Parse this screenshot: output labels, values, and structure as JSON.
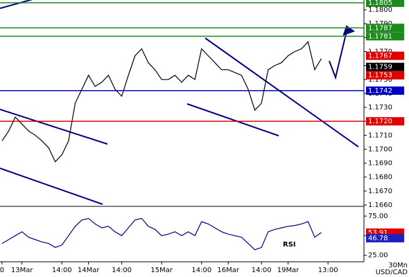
{
  "chart_data": [
    {
      "type": "line",
      "symbol": "USD/CAD",
      "timeframe": "30Mn",
      "color": "#000000",
      "x": [
        0,
        1,
        2,
        3,
        4,
        5,
        6,
        7,
        8,
        9,
        10,
        11,
        12,
        13,
        14,
        15,
        16,
        17,
        18,
        19,
        20,
        21,
        22,
        23,
        24,
        25,
        26,
        27,
        28,
        29,
        30,
        31,
        32,
        33,
        34,
        35,
        36,
        37,
        38,
        39,
        40,
        41,
        42,
        43,
        44,
        45,
        46,
        47,
        48
      ],
      "values": [
        1.1706,
        1.1713,
        1.1723,
        1.1718,
        1.1713,
        1.171,
        1.1706,
        1.1701,
        1.1691,
        1.1696,
        1.1706,
        1.1733,
        1.1743,
        1.1753,
        1.1745,
        1.1748,
        1.1753,
        1.1743,
        1.1738,
        1.1753,
        1.1767,
        1.1772,
        1.1762,
        1.1757,
        1.175,
        1.175,
        1.1753,
        1.1748,
        1.1753,
        1.175,
        1.1772,
        1.1767,
        1.1762,
        1.1757,
        1.1757,
        1.1755,
        1.1753,
        1.1743,
        1.1728,
        1.1733,
        1.1757,
        1.176,
        1.1762,
        1.1767,
        1.177,
        1.1772,
        1.1777,
        1.1757,
        1.1765
      ],
      "xlim": [
        -0.3,
        54.4
      ],
      "xticks": [
        {
          "value": 0,
          "label": "0"
        },
        {
          "value": 3,
          "label": "13Mar"
        },
        {
          "value": 9,
          "label": "14:00"
        },
        {
          "value": 13,
          "label": "14Mar"
        },
        {
          "value": 18,
          "label": "14:00"
        },
        {
          "value": 24,
          "label": "15Mar"
        },
        {
          "value": 30,
          "label": "14:00"
        },
        {
          "value": 34,
          "label": "16Mar"
        },
        {
          "value": 39,
          "label": "14:00"
        },
        {
          "value": 43,
          "label": "19Mar"
        },
        {
          "value": 49,
          "label": "13:00"
        }
      ],
      "ylim": [
        1.1659,
        1.1807
      ],
      "yticks": [
        {
          "value": 1.166,
          "label": "1.1660"
        },
        {
          "value": 1.167,
          "label": "1.1670"
        },
        {
          "value": 1.168,
          "label": "1.1680"
        },
        {
          "value": 1.169,
          "label": "1.1690"
        },
        {
          "value": 1.17,
          "label": "1.1700"
        },
        {
          "value": 1.171,
          "label": "1.1710"
        },
        {
          "value": 1.172,
          "label": "1.1720"
        },
        {
          "value": 1.173,
          "label": "1.1730"
        },
        {
          "value": 1.174,
          "label": "1.1740"
        },
        {
          "value": 1.175,
          "label": "1.1750"
        },
        {
          "value": 1.176,
          "label": "1.1760"
        },
        {
          "value": 1.177,
          "label": "1.1770"
        },
        {
          "value": 1.178,
          "label": "1.1780"
        },
        {
          "value": 1.179,
          "label": "1.1790"
        },
        {
          "value": 1.18,
          "label": "1.1800"
        }
      ],
      "levels": [
        {
          "value": 1.1805,
          "label": "1.1805",
          "color": "#1e8a1e",
          "line": true
        },
        {
          "value": 1.1787,
          "label": "1.1787",
          "color": "#1e8a1e",
          "line": true
        },
        {
          "value": 1.1781,
          "label": "1.1781",
          "color": "#1e8a1e",
          "line": true
        },
        {
          "value": 1.1767,
          "label": "1.1767",
          "color": "#e00000",
          "line": false
        },
        {
          "value": 1.1759,
          "label": "1.1759",
          "color": "#000000",
          "line": false
        },
        {
          "value": 1.1753,
          "label": "1.1753",
          "color": "#e00000",
          "line": false
        },
        {
          "value": 1.1742,
          "label": "1.1742",
          "color": "#0000c0",
          "line": true
        },
        {
          "value": 1.172,
          "label": "1.1720",
          "color": "#e00000",
          "line": true
        }
      ]
    },
    {
      "type": "line",
      "title": "RSI",
      "color": "#000080",
      "x": [
        0,
        1,
        2,
        3,
        4,
        5,
        6,
        7,
        8,
        9,
        10,
        11,
        12,
        13,
        14,
        15,
        16,
        17,
        18,
        19,
        20,
        21,
        22,
        23,
        24,
        25,
        26,
        27,
        28,
        29,
        30,
        31,
        32,
        33,
        34,
        35,
        36,
        37,
        38,
        39,
        40,
        41,
        42,
        43,
        44,
        45,
        46,
        47,
        48
      ],
      "values": [
        40,
        45,
        50,
        55,
        48,
        45,
        42,
        40,
        35,
        38,
        50,
        62,
        70,
        72,
        65,
        60,
        62,
        55,
        50,
        60,
        70,
        72,
        62,
        58,
        50,
        52,
        55,
        50,
        55,
        50,
        68,
        65,
        60,
        55,
        52,
        50,
        48,
        40,
        32,
        35,
        55,
        58,
        60,
        62,
        63,
        65,
        68,
        48,
        54
      ],
      "ylim": [
        22,
        83
      ],
      "yticks": [
        {
          "value": 25,
          "label": "25.00"
        },
        {
          "value": 50,
          "label": "50.00"
        },
        {
          "value": 75,
          "label": "75.00"
        }
      ],
      "levels": [
        {
          "value": 53.91,
          "color": "#e00000"
        },
        {
          "value": 46.78,
          "color": "#2020c0"
        }
      ]
    }
  ]
}
